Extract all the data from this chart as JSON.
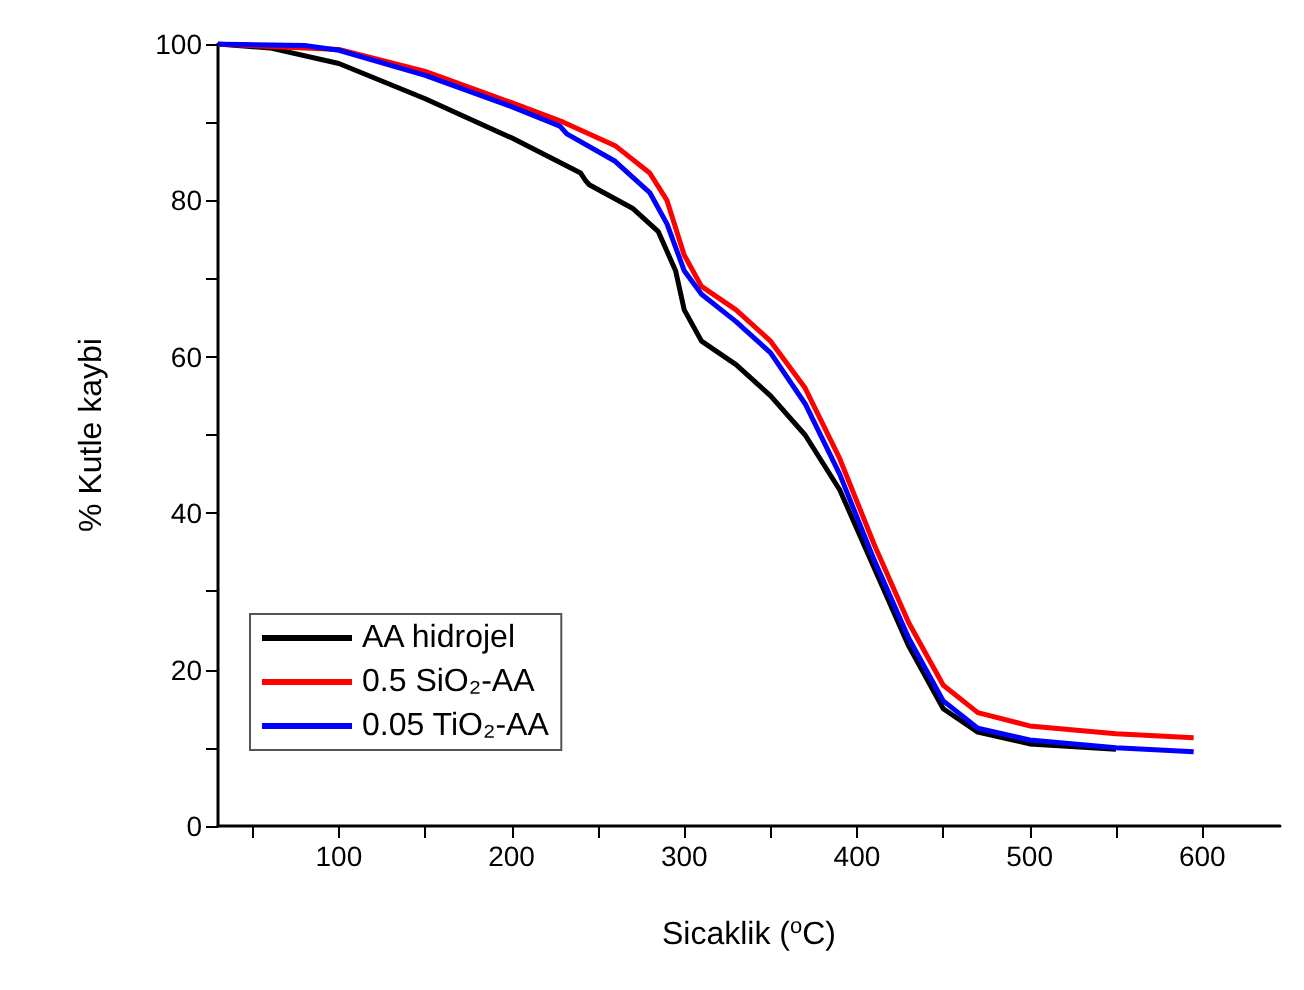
{
  "chart_data": {
    "type": "line",
    "xlabel": "Sicaklik ($^{o}$C)",
    "ylabel": "% Kutle kaybi",
    "xlim": [
      30,
      645
    ],
    "ylim": [
      0,
      100
    ],
    "xticks": [
      100,
      200,
      300,
      400,
      500,
      600
    ],
    "yticks": [
      0,
      20,
      40,
      60,
      80,
      100
    ],
    "grid": false,
    "legend": "bottom left",
    "marker": "none",
    "line_style": "solid",
    "series": [
      {
        "name": "AA hidrojel",
        "color": "#000000",
        "x": [
          30,
          60,
          100,
          150,
          200,
          240,
          243,
          245,
          270,
          285,
          295,
          300,
          310,
          330,
          350,
          370,
          390,
          410,
          430,
          450,
          470,
          500,
          550
        ],
        "values": [
          100,
          99.5,
          97.5,
          93,
          88,
          83.5,
          82.5,
          82,
          79,
          76,
          71,
          66,
          62,
          59,
          55,
          50,
          43,
          33,
          23,
          15,
          12,
          10.5,
          9.8
        ]
      },
      {
        "name": "0.5 SiO₂-AA",
        "color": "#ff0000",
        "x": [
          30,
          100,
          150,
          200,
          230,
          260,
          280,
          290,
          300,
          310,
          330,
          350,
          370,
          390,
          410,
          430,
          450,
          470,
          500,
          550,
          595
        ],
        "values": [
          100,
          99.3,
          96.5,
          92.5,
          90,
          87,
          83.5,
          80,
          73,
          69,
          66,
          62,
          56,
          47,
          36,
          26,
          18,
          14.5,
          12.8,
          11.8,
          11.3
        ]
      },
      {
        "name": "0.05 TiO₂-AA",
        "color": "#0000ff",
        "x": [
          30,
          80,
          100,
          150,
          200,
          228,
          232,
          260,
          280,
          290,
          300,
          310,
          330,
          350,
          370,
          390,
          410,
          430,
          450,
          470,
          500,
          550,
          595
        ],
        "values": [
          100,
          99.8,
          99.2,
          96,
          92,
          89.5,
          88.5,
          85,
          81,
          77,
          71,
          68,
          64.5,
          60.5,
          54,
          45,
          34,
          24,
          16,
          12.5,
          11,
          10,
          9.5
        ]
      }
    ]
  }
}
